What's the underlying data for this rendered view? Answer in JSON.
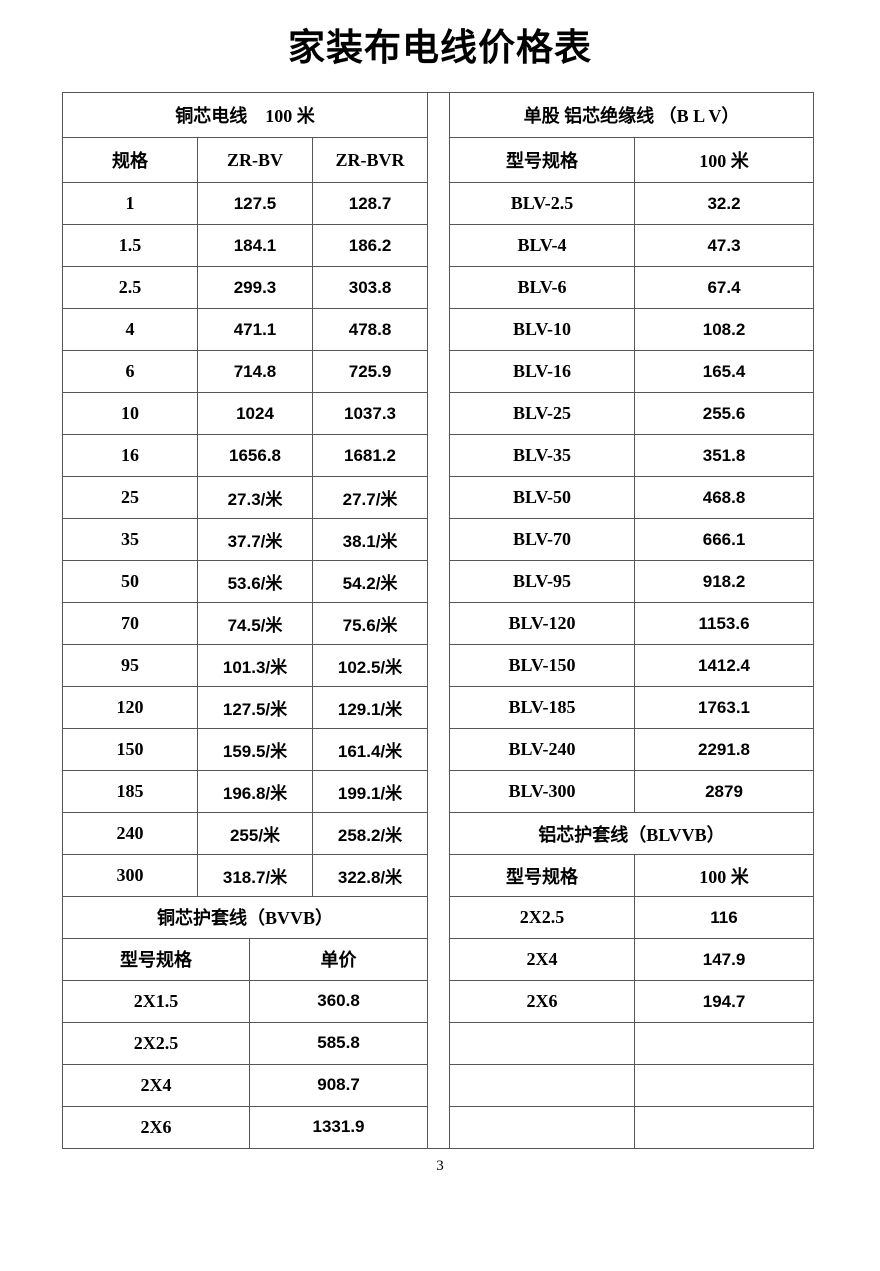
{
  "page": {
    "title": "家装布电线价格表",
    "page_number": "3"
  },
  "colors": {
    "background": "#ffffff",
    "text": "#000000",
    "table_border": "#565656"
  },
  "left_table": {
    "section1": {
      "title": "铜芯电线　100 米",
      "columns": [
        "规格",
        "ZR-BV",
        "ZR-BVR"
      ],
      "rows": [
        [
          "1",
          "127.5",
          "128.7"
        ],
        [
          "1.5",
          "184.1",
          "186.2"
        ],
        [
          "2.5",
          "299.3",
          "303.8"
        ],
        [
          "4",
          "471.1",
          "478.8"
        ],
        [
          "6",
          "714.8",
          "725.9"
        ],
        [
          "10",
          "1024",
          "1037.3"
        ],
        [
          "16",
          "1656.8",
          "1681.2"
        ],
        [
          "25",
          "27.3/米",
          "27.7/米"
        ],
        [
          "35",
          "37.7/米",
          "38.1/米"
        ],
        [
          "50",
          "53.6/米",
          "54.2/米"
        ],
        [
          "70",
          "74.5/米",
          "75.6/米"
        ],
        [
          "95",
          "101.3/米",
          "102.5/米"
        ],
        [
          "120",
          "127.5/米",
          "129.1/米"
        ],
        [
          "150",
          "159.5/米",
          "161.4/米"
        ],
        [
          "185",
          "196.8/米",
          "199.1/米"
        ],
        [
          "240",
          "255/米",
          "258.2/米"
        ],
        [
          "300",
          "318.7/米",
          "322.8/米"
        ]
      ]
    },
    "section2": {
      "title": "铜芯护套线（BVVB）",
      "columns": [
        "型号规格",
        "单价"
      ],
      "rows": [
        [
          "2X1.5",
          "360.8"
        ],
        [
          "2X2.5",
          "585.8"
        ],
        [
          "2X4",
          "908.7"
        ],
        [
          "2X6",
          "1331.9"
        ]
      ]
    }
  },
  "right_table": {
    "section1": {
      "title": "单股 铝芯绝缘线 （B L V）",
      "columns": [
        "型号规格",
        "100 米"
      ],
      "rows": [
        [
          "BLV-2.5",
          "32.2"
        ],
        [
          "BLV-4",
          "47.3"
        ],
        [
          "BLV-6",
          "67.4"
        ],
        [
          "BLV-10",
          "108.2"
        ],
        [
          "BLV-16",
          "165.4"
        ],
        [
          "BLV-25",
          "255.6"
        ],
        [
          "BLV-35",
          "351.8"
        ],
        [
          "BLV-50",
          "468.8"
        ],
        [
          "BLV-70",
          "666.1"
        ],
        [
          "BLV-95",
          "918.2"
        ],
        [
          "BLV-120",
          "1153.6"
        ],
        [
          "BLV-150",
          "1412.4"
        ],
        [
          "BLV-185",
          "1763.1"
        ],
        [
          "BLV-240",
          "2291.8"
        ],
        [
          "BLV-300",
          "2879"
        ]
      ]
    },
    "section2": {
      "title": "铝芯护套线（BLVVB）",
      "columns": [
        "型号规格",
        "100 米"
      ],
      "rows": [
        [
          "2X2.5",
          "116"
        ],
        [
          "2X4",
          "147.9"
        ],
        [
          "2X6",
          "194.7"
        ],
        [
          "",
          ""
        ],
        [
          "",
          ""
        ],
        [
          "",
          ""
        ]
      ]
    }
  }
}
